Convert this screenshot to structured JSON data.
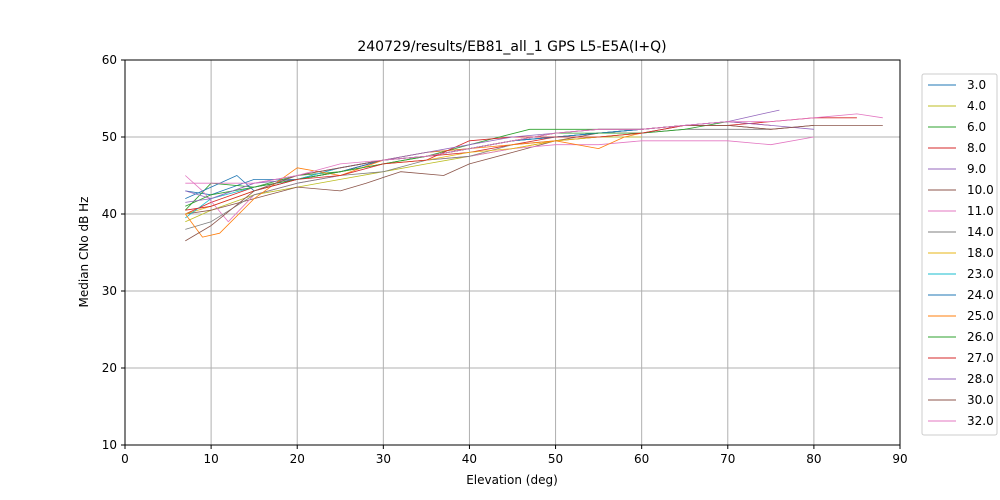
{
  "chart_data": {
    "type": "line",
    "title": "240729/results/EB81_all_1 GPS L5-E5A(I+Q)",
    "xlabel": "Elevation (deg)",
    "ylabel": "Median CNo dB Hz",
    "xlim": [
      0,
      90
    ],
    "ylim": [
      10,
      60
    ],
    "xticks": [
      "0",
      "10",
      "20",
      "30",
      "40",
      "50",
      "60",
      "70",
      "80",
      "90"
    ],
    "yticks": [
      "10",
      "20",
      "30",
      "40",
      "50",
      "60"
    ],
    "grid": true,
    "legend_position": "right",
    "series": [
      {
        "name": "3.0",
        "color": "#1f77b4",
        "x": [
          7,
          10,
          15,
          20,
          25,
          30,
          35,
          40,
          45,
          50,
          55,
          60,
          65,
          70
        ],
        "y": [
          43,
          42.5,
          44.5,
          44.5,
          45.5,
          47,
          47.5,
          48.5,
          49.5,
          50,
          50.5,
          51,
          51.5,
          52
        ]
      },
      {
        "name": "4.0",
        "color": "#bcbd22",
        "x": [
          7,
          10,
          15,
          20,
          25,
          30,
          35,
          40,
          45,
          50,
          55,
          60
        ],
        "y": [
          39,
          40.5,
          42.5,
          43.5,
          44.5,
          45.5,
          46.5,
          47.5,
          48.5,
          49.5,
          50,
          50
        ]
      },
      {
        "name": "6.0",
        "color": "#2ca02c",
        "x": [
          7,
          10,
          15,
          20,
          25,
          30,
          35,
          40,
          47,
          55,
          60,
          65,
          70
        ],
        "y": [
          40.5,
          44,
          43.5,
          45,
          45.5,
          46.5,
          47.5,
          49,
          51,
          51,
          51,
          51.5,
          51.5
        ]
      },
      {
        "name": "8.0",
        "color": "#d62728",
        "x": [
          7,
          10,
          15,
          20,
          25,
          30,
          35,
          40,
          45,
          50,
          55,
          60,
          65,
          70,
          75
        ],
        "y": [
          40,
          41.5,
          43.5,
          44.5,
          45.5,
          47,
          47.5,
          48,
          49,
          50,
          50.5,
          51,
          51.5,
          52,
          51.5
        ]
      },
      {
        "name": "9.0",
        "color": "#9467bd",
        "x": [
          7,
          10,
          15,
          20,
          25,
          30,
          35,
          40,
          45,
          50,
          55,
          60,
          65,
          70,
          74,
          76
        ],
        "y": [
          43,
          42,
          44,
          44.5,
          46,
          47,
          47.5,
          48.5,
          49.5,
          50,
          50.5,
          51,
          51.5,
          52,
          53,
          53.5
        ]
      },
      {
        "name": "10.0",
        "color": "#8c564b",
        "x": [
          7,
          10,
          15,
          20,
          25,
          28,
          32,
          37,
          40,
          45,
          50,
          55,
          60,
          65,
          70,
          75,
          80,
          85,
          88
        ],
        "y": [
          40,
          40.5,
          42,
          43.5,
          43,
          44,
          45.5,
          45,
          46.5,
          48,
          49.5,
          50.5,
          50.5,
          51.5,
          51.5,
          51,
          51.5,
          51.5,
          51.5
        ]
      },
      {
        "name": "11.0",
        "color": "#e377c2",
        "x": [
          7,
          9,
          12,
          15,
          20,
          25,
          30,
          35,
          40,
          45,
          50,
          55,
          60,
          65,
          70,
          75,
          80
        ],
        "y": [
          45,
          43,
          39,
          42.5,
          44,
          45,
          46.5,
          47,
          47.5,
          48.5,
          49,
          49,
          49.5,
          49.5,
          49.5,
          49,
          50
        ]
      },
      {
        "name": "14.0",
        "color": "#7f7f7f",
        "x": [
          7,
          10,
          15,
          20,
          25,
          30,
          35,
          40,
          45,
          50,
          55,
          60,
          65,
          70,
          75
        ],
        "y": [
          38,
          39,
          42.5,
          44,
          45,
          45.5,
          47,
          47.5,
          49,
          49.5,
          50,
          50.5,
          51,
          51,
          51
        ]
      },
      {
        "name": "18.0",
        "color": "#e7b416",
        "x": [
          7,
          10,
          15,
          20,
          25,
          30,
          35,
          40,
          45,
          50,
          55,
          60
        ],
        "y": [
          40,
          41,
          43,
          44.5,
          45.5,
          46.5,
          47,
          48,
          48.5,
          49.5,
          50,
          50.5
        ]
      },
      {
        "name": "23.0",
        "color": "#17becf",
        "x": [
          7,
          10,
          15,
          20,
          25,
          30,
          35,
          40,
          45,
          50,
          55,
          60
        ],
        "y": [
          39.5,
          42,
          43.5,
          44.5,
          46,
          47,
          47.5,
          48.5,
          49.5,
          50,
          50.5,
          51
        ]
      },
      {
        "name": "24.0",
        "color": "#1f77b4",
        "x": [
          7,
          10,
          13,
          15,
          20,
          25,
          30,
          35,
          40,
          45,
          50,
          55,
          60
        ],
        "y": [
          42,
          43.5,
          45,
          43,
          44.5,
          45.5,
          47,
          48,
          48.5,
          49.5,
          50,
          50.5,
          51
        ]
      },
      {
        "name": "25.0",
        "color": "#ff7f0e",
        "x": [
          7,
          9,
          11,
          15,
          20,
          25,
          30,
          35,
          40,
          45,
          50,
          55,
          58,
          60
        ],
        "y": [
          40,
          37,
          37.5,
          42,
          46,
          45,
          47,
          48,
          48.5,
          49,
          49.5,
          48.5,
          50,
          50.5
        ]
      },
      {
        "name": "26.0",
        "color": "#2ca02c",
        "x": [
          7,
          10,
          15,
          20,
          25,
          30,
          35,
          40,
          45,
          50,
          55,
          60,
          65,
          70
        ],
        "y": [
          41,
          42.5,
          43.5,
          44.5,
          45.5,
          46.5,
          47.5,
          48.5,
          49.5,
          50.5,
          50.5,
          50.5,
          51,
          52
        ]
      },
      {
        "name": "27.0",
        "color": "#d62728",
        "x": [
          7,
          10,
          15,
          20,
          25,
          30,
          35,
          40,
          45,
          50,
          55,
          60,
          65,
          70,
          75,
          80,
          85
        ],
        "y": [
          40.5,
          41,
          43,
          44.5,
          45,
          46.5,
          47,
          49.5,
          50,
          50,
          50,
          50.5,
          51.5,
          51.5,
          52,
          52.5,
          52.5
        ]
      },
      {
        "name": "28.0",
        "color": "#9467bd",
        "x": [
          7,
          10,
          15,
          20,
          25,
          30,
          35,
          40,
          45,
          50,
          55,
          60,
          65,
          70,
          75,
          80
        ],
        "y": [
          41.5,
          42,
          44,
          45,
          46,
          47,
          48,
          49,
          50,
          50.5,
          51,
          51,
          51.5,
          52,
          51.5,
          51
        ]
      },
      {
        "name": "30.0",
        "color": "#8c564b",
        "x": [
          7,
          10,
          15,
          20,
          25,
          30,
          35,
          40,
          45,
          50,
          55,
          60,
          65,
          70,
          75,
          80
        ],
        "y": [
          36.5,
          38.5,
          43,
          45,
          46,
          47,
          47.5,
          48.5,
          49.5,
          50.5,
          51,
          51,
          51.5,
          51.5,
          51,
          51.5
        ]
      },
      {
        "name": "32.0",
        "color": "#e377c2",
        "x": [
          7,
          10,
          15,
          20,
          25,
          30,
          35,
          40,
          45,
          50,
          55,
          60,
          65,
          70,
          75,
          80,
          85,
          88
        ],
        "y": [
          44,
          44,
          44,
          45,
          46.5,
          47,
          47.5,
          48.5,
          49.5,
          50.5,
          51,
          51,
          51.5,
          52,
          52,
          52.5,
          53,
          52.5
        ]
      }
    ]
  }
}
